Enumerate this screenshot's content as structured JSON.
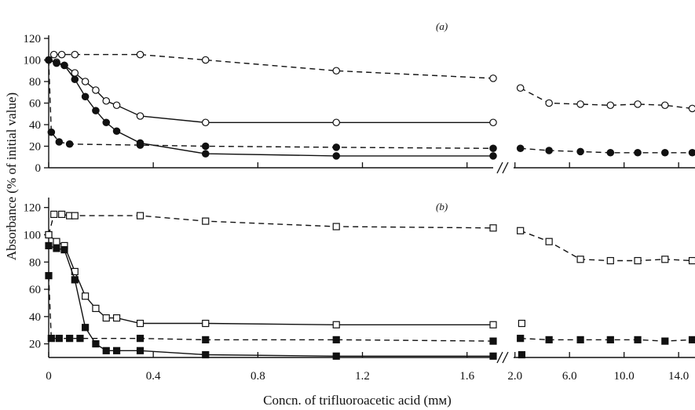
{
  "chart_data": {
    "type": "line",
    "ylabel": "Absorbance (% of initial value)",
    "xlabel": "Concn. of trifluoroacetic acid (mм)",
    "x_break": {
      "left_range": [
        0,
        1.7
      ],
      "right_range": [
        1.9,
        15.2
      ]
    },
    "x_ticks_left": [
      {
        "v": 0,
        "label": "0"
      },
      {
        "v": 0.4,
        "label": "0.4"
      },
      {
        "v": 0.8,
        "label": "0.8"
      },
      {
        "v": 1.2,
        "label": "1.2"
      },
      {
        "v": 1.6,
        "label": "1.6"
      }
    ],
    "x_ticks_right": [
      {
        "v": 2.0,
        "label": "2.0"
      },
      {
        "v": 6.0,
        "label": "6.0"
      },
      {
        "v": 10.0,
        "label": "10.0"
      },
      {
        "v": 14.0,
        "label": "14.0"
      }
    ],
    "panels": [
      {
        "label": "(a)",
        "ylim": [
          0,
          120
        ],
        "yticks": [
          0,
          20,
          40,
          60,
          80,
          100,
          120
        ],
        "series": [
          {
            "marker": "circle",
            "filled": false,
            "dash": true,
            "left": [
              [
                0,
                100
              ],
              [
                0.02,
                105
              ],
              [
                0.05,
                105
              ],
              [
                0.1,
                105
              ],
              [
                0.35,
                105
              ],
              [
                0.6,
                100
              ],
              [
                1.1,
                90
              ],
              [
                1.7,
                83
              ]
            ],
            "right": [
              [
                2.4,
                74
              ],
              [
                4.5,
                60
              ],
              [
                6.8,
                59
              ],
              [
                9.0,
                58
              ],
              [
                11.0,
                59
              ],
              [
                13.0,
                58
              ],
              [
                15.0,
                55
              ]
            ]
          },
          {
            "marker": "circle",
            "filled": false,
            "dash": false,
            "left": [
              [
                0,
                100
              ],
              [
                0.03,
                98
              ],
              [
                0.06,
                95
              ],
              [
                0.1,
                88
              ],
              [
                0.14,
                80
              ],
              [
                0.18,
                72
              ],
              [
                0.22,
                62
              ],
              [
                0.26,
                58
              ],
              [
                0.35,
                48
              ],
              [
                0.6,
                42
              ],
              [
                1.1,
                42
              ],
              [
                1.7,
                42
              ]
            ],
            "right": []
          },
          {
            "marker": "circle",
            "filled": true,
            "dash": false,
            "left": [
              [
                0,
                100
              ],
              [
                0.03,
                97
              ],
              [
                0.06,
                95
              ],
              [
                0.1,
                82
              ],
              [
                0.14,
                66
              ],
              [
                0.18,
                53
              ],
              [
                0.22,
                42
              ],
              [
                0.26,
                34
              ],
              [
                0.35,
                23
              ],
              [
                0.6,
                13
              ],
              [
                1.1,
                11
              ],
              [
                1.7,
                11
              ]
            ],
            "right": []
          },
          {
            "marker": "circle",
            "filled": true,
            "dash": true,
            "left": [
              [
                0,
                100
              ],
              [
                0.01,
                33
              ],
              [
                0.04,
                24
              ],
              [
                0.08,
                22
              ],
              [
                0.35,
                21
              ],
              [
                0.6,
                20
              ],
              [
                1.1,
                19
              ],
              [
                1.7,
                18
              ]
            ],
            "right": [
              [
                2.4,
                18
              ],
              [
                4.5,
                16
              ],
              [
                6.8,
                15
              ],
              [
                9.0,
                14
              ],
              [
                11.0,
                14
              ],
              [
                13.0,
                14
              ],
              [
                15.0,
                14
              ]
            ]
          }
        ]
      },
      {
        "label": "(b)",
        "ylim": [
          10,
          125
        ],
        "yticks": [
          20,
          40,
          60,
          80,
          100,
          120
        ],
        "series": [
          {
            "marker": "square",
            "filled": false,
            "dash": true,
            "left": [
              [
                0,
                100
              ],
              [
                0.02,
                115
              ],
              [
                0.05,
                115
              ],
              [
                0.08,
                114
              ],
              [
                0.1,
                114
              ],
              [
                0.35,
                114
              ],
              [
                0.6,
                110
              ],
              [
                1.1,
                106
              ],
              [
                1.7,
                105
              ]
            ],
            "right": [
              [
                2.4,
                103
              ],
              [
                4.5,
                95
              ],
              [
                6.8,
                82
              ],
              [
                9.0,
                81
              ],
              [
                11.0,
                81
              ],
              [
                13.0,
                82
              ],
              [
                15.0,
                81
              ]
            ]
          },
          {
            "marker": "square",
            "filled": false,
            "dash": false,
            "left": [
              [
                0,
                100
              ],
              [
                0.03,
                95
              ],
              [
                0.06,
                92
              ],
              [
                0.1,
                73
              ],
              [
                0.14,
                55
              ],
              [
                0.18,
                46
              ],
              [
                0.22,
                39
              ],
              [
                0.26,
                39
              ],
              [
                0.35,
                35
              ],
              [
                0.6,
                35
              ],
              [
                1.1,
                34
              ],
              [
                1.7,
                34
              ]
            ],
            "right": [
              [
                2.5,
                35
              ]
            ]
          },
          {
            "marker": "square",
            "filled": true,
            "dash": false,
            "left": [
              [
                0,
                92
              ],
              [
                0.03,
                90
              ],
              [
                0.06,
                89
              ],
              [
                0.1,
                67
              ],
              [
                0.14,
                32
              ],
              [
                0.18,
                20
              ],
              [
                0.22,
                15
              ],
              [
                0.26,
                15
              ],
              [
                0.35,
                15
              ],
              [
                0.6,
                12
              ],
              [
                1.1,
                11
              ],
              [
                1.7,
                11
              ]
            ],
            "right": [
              [
                2.5,
                12
              ]
            ]
          },
          {
            "marker": "square",
            "filled": true,
            "dash": true,
            "left": [
              [
                0,
                70
              ],
              [
                0.01,
                24
              ],
              [
                0.04,
                24
              ],
              [
                0.08,
                24
              ],
              [
                0.12,
                24
              ],
              [
                0.35,
                24
              ],
              [
                0.6,
                23
              ],
              [
                1.1,
                23
              ],
              [
                1.7,
                22
              ]
            ],
            "right": [
              [
                2.4,
                24
              ],
              [
                4.5,
                23
              ],
              [
                6.8,
                23
              ],
              [
                9.0,
                23
              ],
              [
                11.0,
                23
              ],
              [
                13.0,
                22
              ],
              [
                15.0,
                23
              ]
            ]
          }
        ]
      }
    ]
  }
}
